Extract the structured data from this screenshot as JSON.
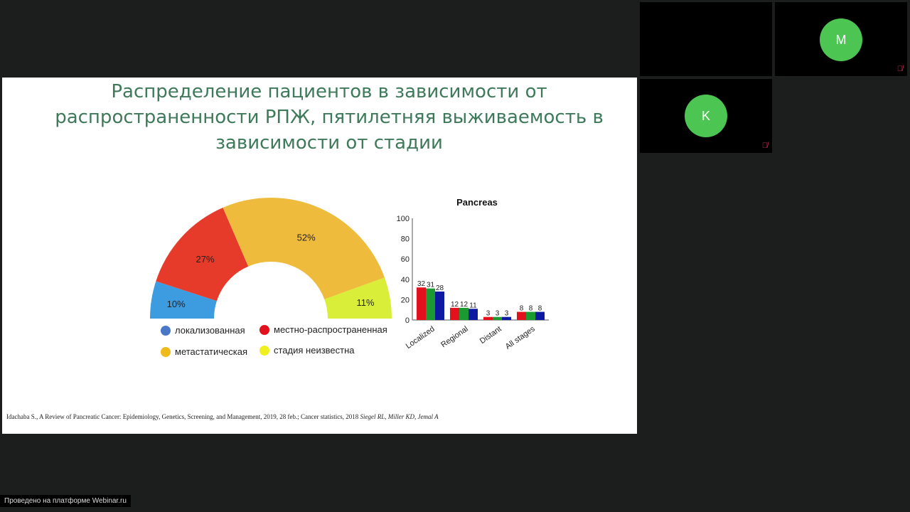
{
  "participants": [
    {
      "initial": "M",
      "muted": true
    },
    {
      "initial": "K",
      "muted": true
    }
  ],
  "slide": {
    "title_lines": [
      "Распределение пациентов в зависимости от",
      "распространенности РПЖ, пятилетняя выживаемость в",
      "зависимости от стадии"
    ],
    "citation": "Idachaba S., A Review of Pancreatic Cancer: Epidemiology, Genetics, Screening, and Management, 2019, 28 feb.; Cancer statistics, 2018",
    "citation_authors": "Siegel RL, Miller KD, Jemal A"
  },
  "footer": "Проведено на платформе Webinar.ru",
  "chart_data": [
    {
      "type": "pie",
      "variant": "half-donut",
      "slices": [
        {
          "name": "локализованная",
          "value": 10,
          "label": "10%",
          "color": "#3d9be0"
        },
        {
          "name": "местно-распространенная",
          "value": 27,
          "label": "27%",
          "color": "#e63b2a"
        },
        {
          "name": "метастатическая",
          "value": 52,
          "label": "52%",
          "color": "#efbb3c"
        },
        {
          "name": "стадия неизвестна",
          "value": 11,
          "label": "11%",
          "color": "#d9ee38"
        }
      ],
      "legend_dot_colors": [
        "#4a78c8",
        "#e3101e",
        "#efbb1c",
        "#f0f020"
      ]
    },
    {
      "type": "bar",
      "title": "Pancreas",
      "categories": [
        "Localized",
        "Regional",
        "Distant",
        "All stages"
      ],
      "series": [
        {
          "color": "#e3101e",
          "values": [
            32,
            12,
            3,
            8
          ]
        },
        {
          "color": "#1a9a30",
          "values": [
            31,
            12,
            3,
            8
          ]
        },
        {
          "color": "#0b1aa0",
          "values": [
            28,
            11,
            3,
            8
          ]
        }
      ],
      "ylim": [
        0,
        100
      ],
      "yticks": [
        0,
        20,
        40,
        60,
        80,
        100
      ]
    }
  ]
}
